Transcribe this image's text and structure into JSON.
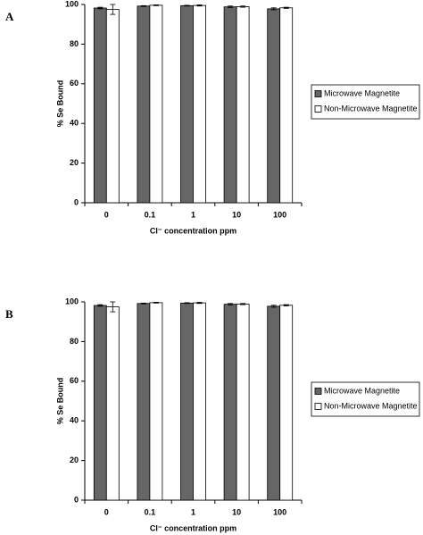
{
  "chart_data": [
    {
      "type": "bar",
      "panel": "A",
      "x_label": "Cl⁻ concentration ppm",
      "y_label": "% Se Bound",
      "categories": [
        "0",
        "0.1",
        "1",
        "10",
        "100"
      ],
      "series": [
        {
          "name": "Microwave Magnetite",
          "color": "#666666",
          "values": [
            98.2,
            99.2,
            99.4,
            98.8,
            97.8
          ],
          "errors": [
            0.4,
            0.2,
            0.2,
            0.4,
            0.5
          ]
        },
        {
          "name": "Non-Microwave Magnetite",
          "color": "#ffffff",
          "values": [
            97.5,
            99.6,
            99.5,
            98.9,
            98.3
          ],
          "errors": [
            2.5,
            0.2,
            0.3,
            0.3,
            0.3
          ]
        }
      ],
      "ylim": [
        0,
        100
      ],
      "yticks": [
        0,
        20,
        40,
        60,
        80,
        100
      ],
      "grid": false,
      "legend": "right"
    },
    {
      "type": "bar",
      "panel": "B",
      "x_label": "Cl⁻ concentration ppm",
      "y_label": "% Se Bound",
      "categories": [
        "0",
        "0.1",
        "1",
        "10",
        "100"
      ],
      "series": [
        {
          "name": "Microwave Magnetite",
          "color": "#666666",
          "values": [
            98.2,
            99.2,
            99.4,
            98.8,
            97.8
          ],
          "errors": [
            0.4,
            0.2,
            0.2,
            0.4,
            0.5
          ]
        },
        {
          "name": "Non-Microwave Magnetite",
          "color": "#ffffff",
          "values": [
            97.5,
            99.6,
            99.5,
            98.9,
            98.3
          ],
          "errors": [
            2.5,
            0.2,
            0.3,
            0.3,
            0.3
          ]
        }
      ],
      "ylim": [
        0,
        100
      ],
      "yticks": [
        0,
        20,
        40,
        60,
        80,
        100
      ],
      "grid": false,
      "legend": "right"
    }
  ]
}
